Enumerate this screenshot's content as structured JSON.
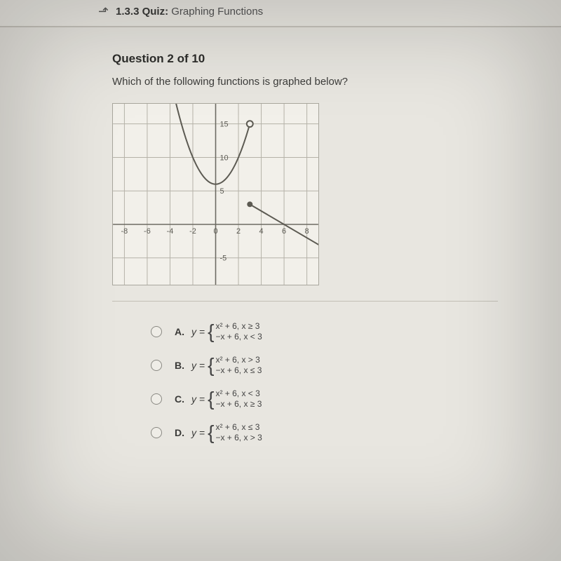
{
  "header": {
    "quiz_number": "1.3.3",
    "quiz_word": "Quiz:",
    "quiz_title": "Graphing Functions"
  },
  "question": {
    "heading": "Question 2 of 10",
    "text": "Which of the following functions is graphed below?"
  },
  "graph": {
    "x_ticks": [
      -8,
      -6,
      -4,
      -2,
      0,
      2,
      4,
      6,
      8
    ],
    "y_ticks_pos": [
      5,
      10,
      15
    ],
    "y_ticks_neg": [
      -5
    ],
    "x_range": [
      -9,
      9
    ],
    "y_range": [
      -9,
      18
    ],
    "grid_color": "#b5b2a8",
    "axis_color": "#6d6b63",
    "curve_color": "#5c5a52",
    "label_color": "#5b5a53",
    "label_font_size": 11,
    "parabola": {
      "vertex": [
        0,
        6
      ],
      "type": "x^2+6",
      "domain": [
        -3.5,
        3
      ],
      "open_end": [
        3,
        15
      ]
    },
    "line": {
      "formula": "-x+6",
      "domain_start": [
        3,
        3
      ],
      "extends_to": [
        12,
        -6
      ],
      "closed_start": true
    }
  },
  "options": [
    {
      "letter": "A.",
      "top": "x² + 6, x ≥ 3",
      "bottom": "−x + 6, x < 3"
    },
    {
      "letter": "B.",
      "top": "x² + 6, x > 3",
      "bottom": "−x + 6, x ≤ 3"
    },
    {
      "letter": "C.",
      "top": "x² + 6, x < 3",
      "bottom": "−x + 6, x ≥ 3"
    },
    {
      "letter": "D.",
      "top": "x² + 6, x ≤ 3",
      "bottom": "−x + 6, x > 3"
    }
  ],
  "y_label": "y ="
}
